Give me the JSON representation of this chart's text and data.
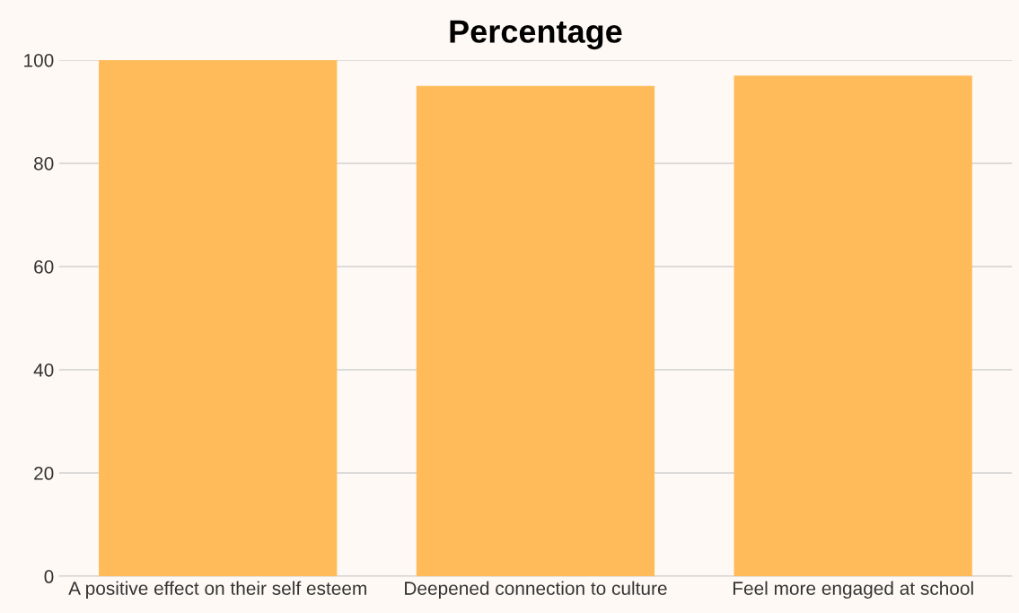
{
  "chart_data": {
    "type": "bar",
    "title": "Percentage",
    "categories": [
      "A positive effect on their self esteem",
      "Deepened connection to culture",
      "Feel more engaged at school"
    ],
    "values": [
      100,
      95,
      97
    ],
    "color": "#ffbb5a",
    "ylim": [
      0,
      100
    ],
    "yticks": [
      0,
      20,
      40,
      60,
      80,
      100
    ],
    "grid": "y"
  }
}
